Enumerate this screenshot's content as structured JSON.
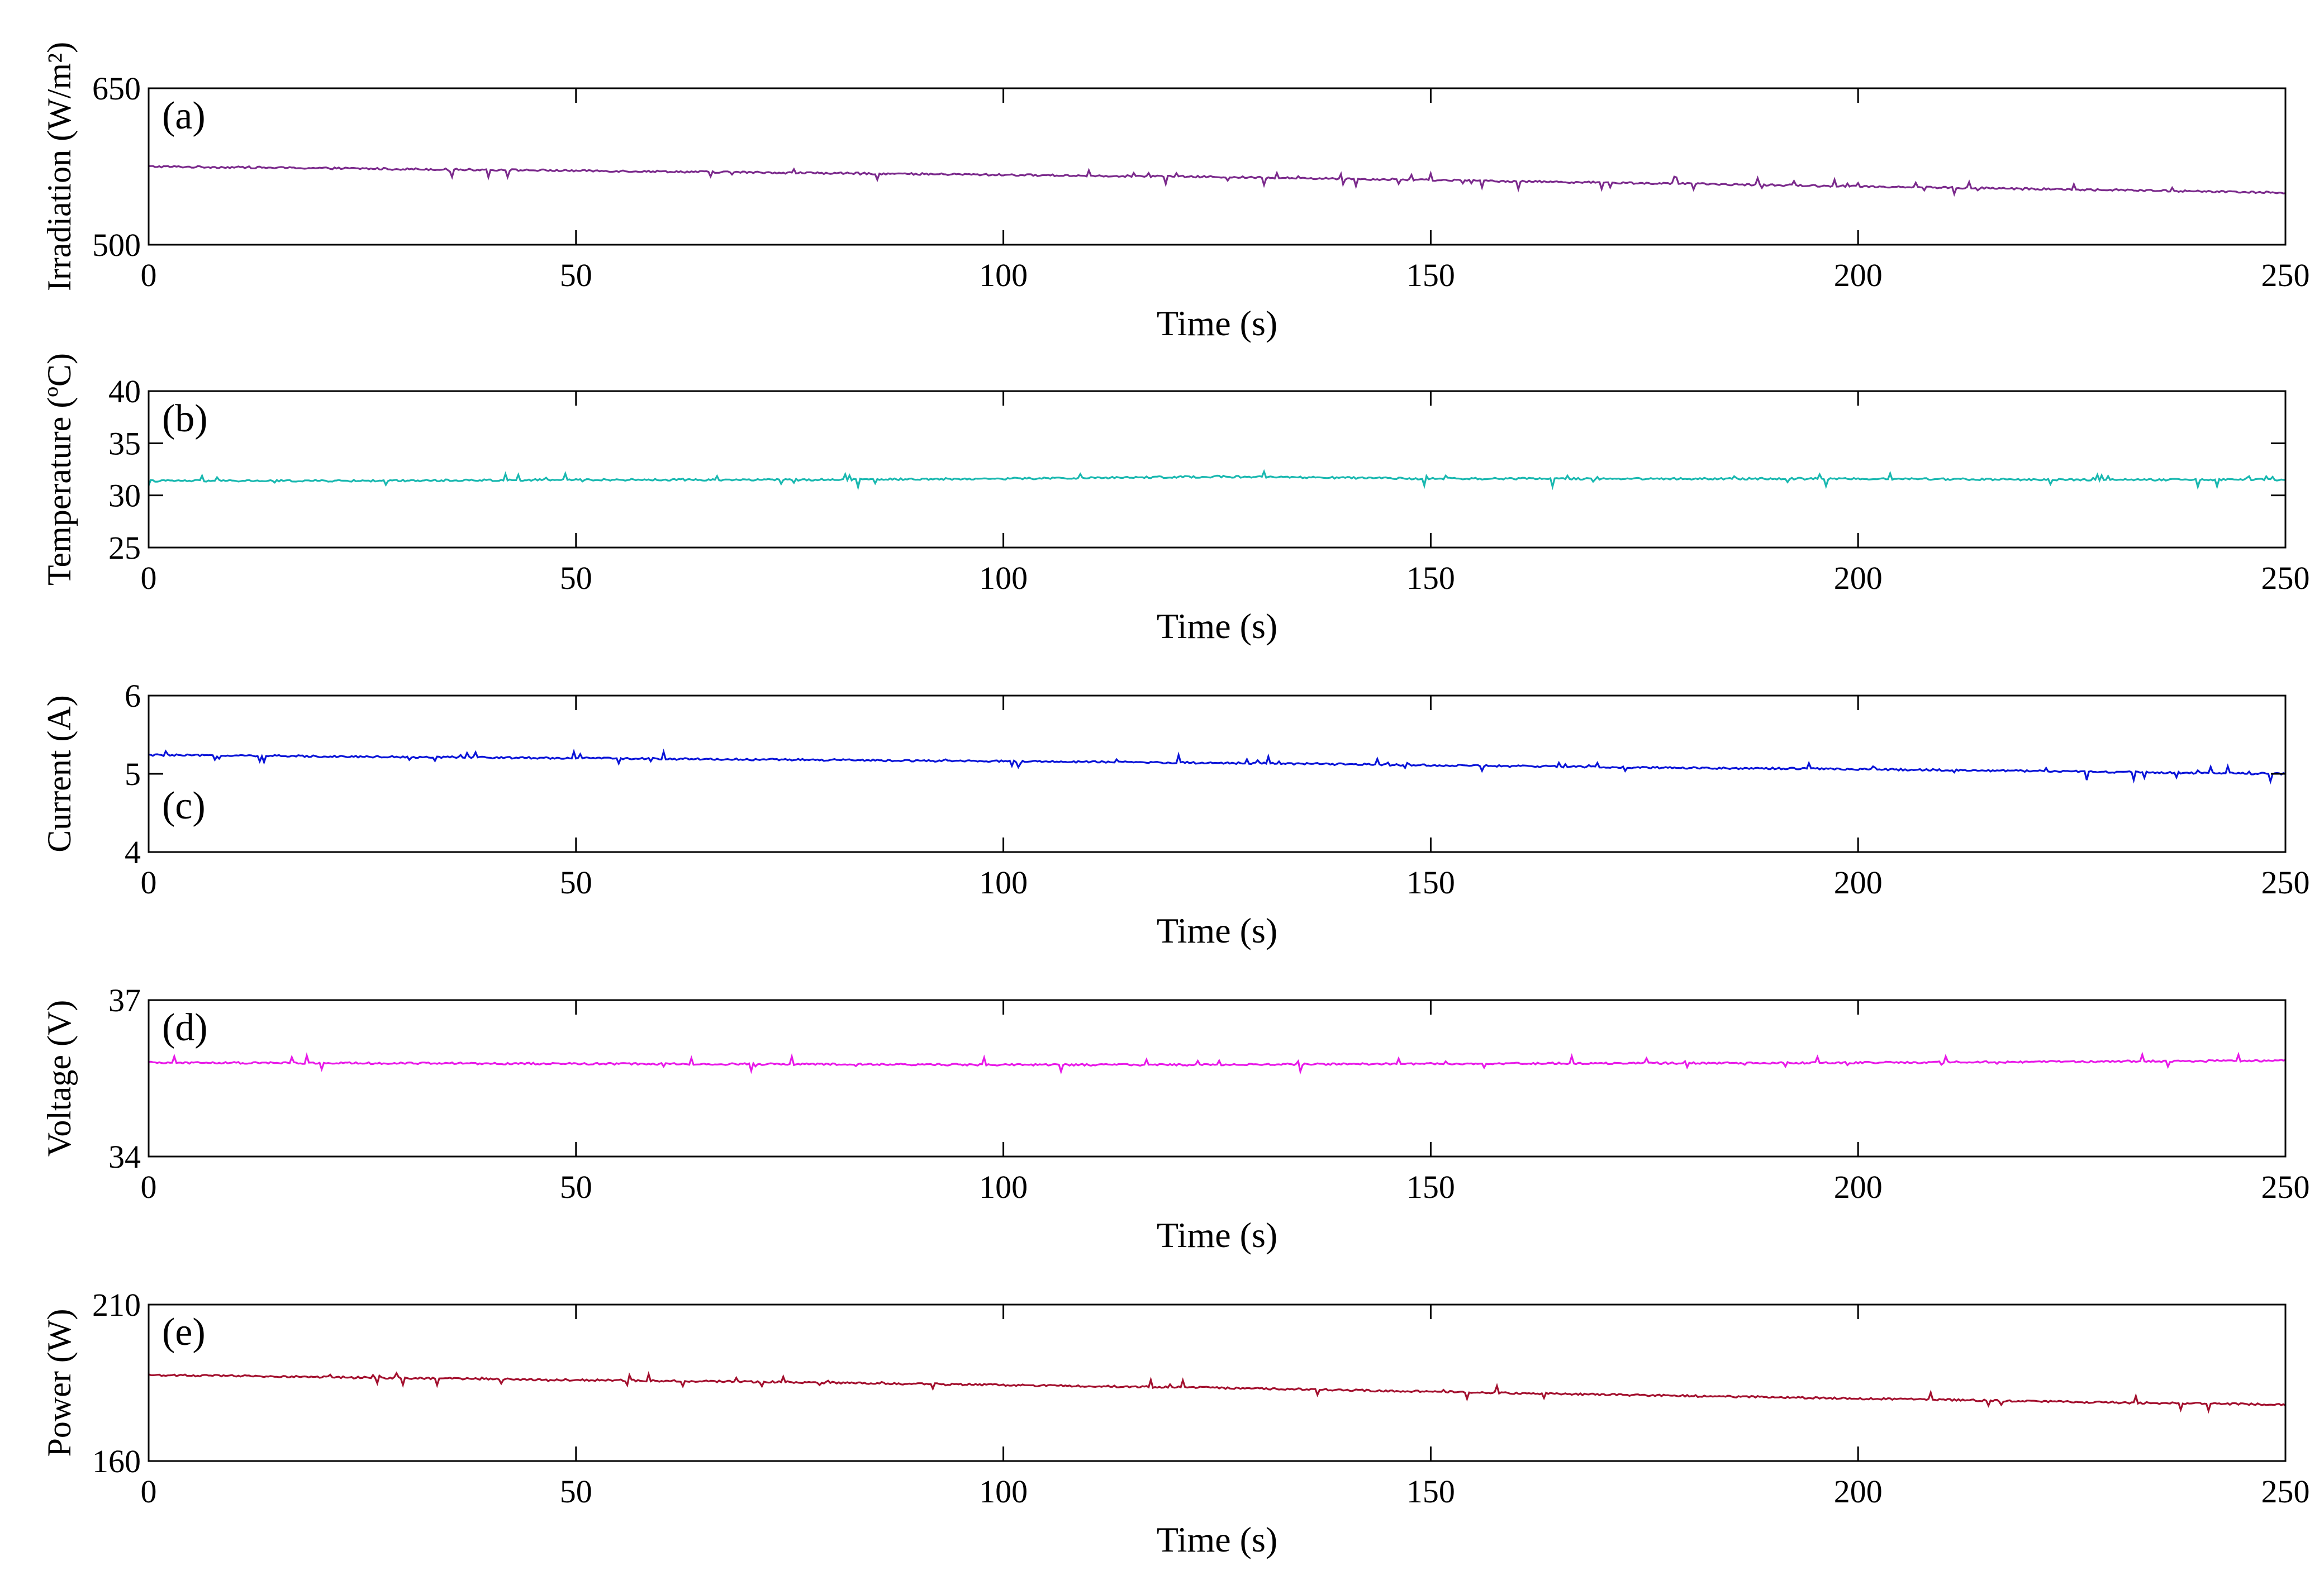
{
  "chart_data": [
    {
      "type": "line",
      "panel_label": "(a)",
      "ylabel": "Irradiation (W/m²)",
      "xlabel": "Time (s)",
      "xlim": [
        0,
        250
      ],
      "ylim": [
        500,
        650
      ],
      "xticks": [
        0,
        50,
        100,
        150,
        200,
        250
      ],
      "yticks": [
        500,
        650
      ],
      "grid": false,
      "color": "#7B2A8C",
      "series": [
        {
          "x": [
            0,
            25,
            50,
            75,
            100,
            125,
            150,
            175,
            200,
            225,
            250
          ],
          "values": [
            575,
            573,
            571,
            569,
            567,
            565,
            562,
            559,
            556,
            553,
            550
          ]
        }
      ]
    },
    {
      "type": "line",
      "panel_label": "(b)",
      "ylabel": "Temperature (ºC)",
      "xlabel": "Time (s)",
      "xlim": [
        0,
        250
      ],
      "ylim": [
        25,
        40
      ],
      "xticks": [
        0,
        50,
        100,
        150,
        200,
        250
      ],
      "yticks": [
        25,
        30,
        35,
        40
      ],
      "grid": false,
      "color": "#19B8B0",
      "series": [
        {
          "x": [
            0,
            25,
            50,
            75,
            100,
            125,
            150,
            175,
            200,
            225,
            250
          ],
          "values": [
            31.4,
            31.4,
            31.5,
            31.5,
            31.6,
            31.8,
            31.6,
            31.6,
            31.6,
            31.5,
            31.5
          ]
        }
      ]
    },
    {
      "type": "line",
      "panel_label": "(c)",
      "ylabel": "Current (A)",
      "xlabel": "Time (s)",
      "xlim": [
        0,
        250
      ],
      "ylim": [
        4,
        6
      ],
      "xticks": [
        0,
        50,
        100,
        150,
        200,
        250
      ],
      "yticks": [
        4,
        5,
        6
      ],
      "grid": false,
      "color": "#0A14D8",
      "series": [
        {
          "x": [
            0,
            25,
            50,
            75,
            100,
            125,
            150,
            175,
            200,
            225,
            250
          ],
          "values": [
            5.24,
            5.22,
            5.2,
            5.18,
            5.16,
            5.14,
            5.11,
            5.08,
            5.06,
            5.03,
            5.0
          ]
        }
      ]
    },
    {
      "type": "line",
      "panel_label": "(d)",
      "ylabel": "Voltage (V)",
      "xlabel": "Time (s)",
      "xlim": [
        0,
        250
      ],
      "ylim": [
        34,
        37
      ],
      "xticks": [
        0,
        50,
        100,
        150,
        200,
        250
      ],
      "yticks": [
        34,
        37
      ],
      "grid": false,
      "color": "#E81AE8",
      "series": [
        {
          "x": [
            0,
            25,
            50,
            75,
            100,
            125,
            150,
            175,
            200,
            225,
            250
          ],
          "values": [
            35.8,
            35.79,
            35.78,
            35.77,
            35.76,
            35.76,
            35.78,
            35.79,
            35.8,
            35.82,
            35.84
          ]
        }
      ]
    },
    {
      "type": "line",
      "panel_label": "(e)",
      "ylabel": "Power (W)",
      "xlabel": "Time (s)",
      "xlim": [
        0,
        250
      ],
      "ylim": [
        160,
        210
      ],
      "xticks": [
        0,
        50,
        100,
        150,
        200,
        250
      ],
      "yticks": [
        160,
        210
      ],
      "grid": false,
      "color": "#A3102E",
      "series": [
        {
          "x": [
            0,
            25,
            50,
            75,
            100,
            125,
            150,
            175,
            200,
            225,
            250
          ],
          "values": [
            187.5,
            186.7,
            185.9,
            185.2,
            184.3,
            183.4,
            182.2,
            181.0,
            180.0,
            178.9,
            178.0
          ]
        }
      ]
    }
  ]
}
